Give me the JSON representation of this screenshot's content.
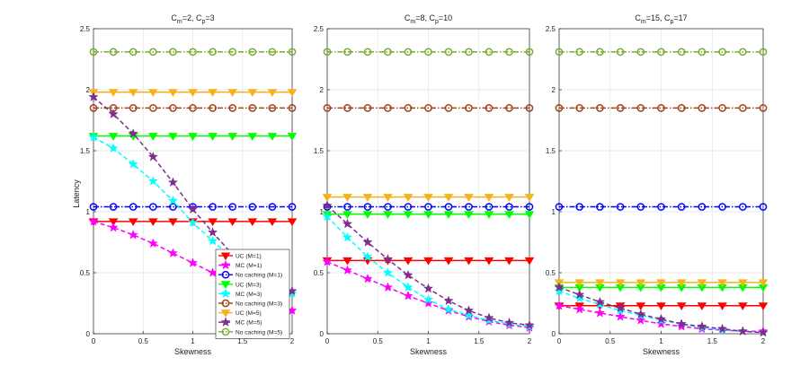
{
  "chart_data": {
    "type": "line",
    "ylabel": "Latency",
    "xlabel": "Skewness",
    "xlim": [
      0,
      2
    ],
    "ylim": [
      0,
      2.5
    ],
    "xticks": [
      "0",
      "0.5",
      "1",
      "1.5",
      "2"
    ],
    "yticks": [
      "0",
      "0.5",
      "1",
      "1.5",
      "2",
      "2.5"
    ],
    "grid": true,
    "x": [
      0,
      0.2,
      0.4,
      0.6,
      0.8,
      1.0,
      1.2,
      1.4,
      1.6,
      1.8,
      2.0
    ],
    "legend": {
      "placement": "bottom-right of first panel",
      "entries": [
        {
          "label": "UC (M=1)",
          "color": "#ff0000",
          "marker": "triangle-down",
          "style": "solid"
        },
        {
          "label": "MC (M=1)",
          "color": "#ff00ff",
          "marker": "star",
          "style": "dashed"
        },
        {
          "label": "No caching (M=1)",
          "color": "#0000ff",
          "marker": "circle",
          "style": "dashdot"
        },
        {
          "label": "UC (M=3)",
          "color": "#00ff00",
          "marker": "triangle-down",
          "style": "solid"
        },
        {
          "label": "MC (M=3)",
          "color": "#00ffff",
          "marker": "star",
          "style": "dashed"
        },
        {
          "label": "No caching (M=3)",
          "color": "#a0421a",
          "marker": "circle",
          "style": "dashdot"
        },
        {
          "label": "UC (M=5)",
          "color": "#f5b21b",
          "marker": "triangle-down",
          "style": "solid"
        },
        {
          "label": "MC (M=5)",
          "color": "#7e2f8e",
          "marker": "star",
          "style": "dashed"
        },
        {
          "label": "No caching (M=5)",
          "color": "#77ac30",
          "marker": "circle",
          "style": "dashdot"
        }
      ]
    },
    "panels": [
      {
        "title_main": "C",
        "title_sub1": "m",
        "title_mid": "=2, C",
        "title_sub2": "p",
        "title_end": "=3",
        "series": [
          {
            "name": "UC (M=1)",
            "values": [
              0.92,
              0.92,
              0.92,
              0.92,
              0.92,
              0.92,
              0.92,
              0.92,
              0.92,
              0.92,
              0.92
            ]
          },
          {
            "name": "MC (M=1)",
            "values": [
              0.92,
              0.87,
              0.81,
              0.74,
              0.66,
              0.58,
              0.5,
              0.42,
              0.34,
              0.26,
              0.19
            ]
          },
          {
            "name": "No caching (M=1)",
            "values": [
              1.04,
              1.04,
              1.04,
              1.04,
              1.04,
              1.04,
              1.04,
              1.04,
              1.04,
              1.04,
              1.04
            ]
          },
          {
            "name": "UC (M=3)",
            "values": [
              1.62,
              1.62,
              1.62,
              1.62,
              1.62,
              1.62,
              1.62,
              1.62,
              1.62,
              1.62,
              1.62
            ]
          },
          {
            "name": "MC (M=3)",
            "values": [
              1.61,
              1.52,
              1.39,
              1.25,
              1.09,
              0.91,
              0.76,
              0.62,
              0.51,
              0.42,
              0.33
            ]
          },
          {
            "name": "No caching (M=3)",
            "values": [
              1.85,
              1.85,
              1.85,
              1.85,
              1.85,
              1.85,
              1.85,
              1.85,
              1.85,
              1.85,
              1.85
            ]
          },
          {
            "name": "UC (M=5)",
            "values": [
              1.98,
              1.98,
              1.98,
              1.98,
              1.98,
              1.98,
              1.98,
              1.98,
              1.98,
              1.98,
              1.98
            ]
          },
          {
            "name": "MC (M=5)",
            "values": [
              1.94,
              1.8,
              1.64,
              1.45,
              1.24,
              1.02,
              0.83,
              0.65,
              0.51,
              0.41,
              0.35
            ]
          },
          {
            "name": "No caching (M=5)",
            "values": [
              2.31,
              2.31,
              2.31,
              2.31,
              2.31,
              2.31,
              2.31,
              2.31,
              2.31,
              2.31,
              2.31
            ]
          }
        ]
      },
      {
        "title_main": "C",
        "title_sub1": "m",
        "title_mid": "=8, C",
        "title_sub2": "p",
        "title_end": "=10",
        "series": [
          {
            "name": "UC (M=1)",
            "values": [
              0.6,
              0.6,
              0.6,
              0.6,
              0.6,
              0.6,
              0.6,
              0.6,
              0.6,
              0.6,
              0.6
            ]
          },
          {
            "name": "MC (M=1)",
            "values": [
              0.59,
              0.52,
              0.45,
              0.38,
              0.31,
              0.25,
              0.19,
              0.14,
              0.1,
              0.07,
              0.05
            ]
          },
          {
            "name": "No caching (M=1)",
            "values": [
              1.04,
              1.04,
              1.04,
              1.04,
              1.04,
              1.04,
              1.04,
              1.04,
              1.04,
              1.04,
              1.04
            ]
          },
          {
            "name": "UC (M=3)",
            "values": [
              0.98,
              0.98,
              0.98,
              0.98,
              0.98,
              0.98,
              0.98,
              0.98,
              0.98,
              0.98,
              0.98
            ]
          },
          {
            "name": "MC (M=3)",
            "values": [
              0.96,
              0.79,
              0.63,
              0.5,
              0.38,
              0.28,
              0.2,
              0.15,
              0.11,
              0.08,
              0.06
            ]
          },
          {
            "name": "No caching (M=3)",
            "values": [
              1.85,
              1.85,
              1.85,
              1.85,
              1.85,
              1.85,
              1.85,
              1.85,
              1.85,
              1.85,
              1.85
            ]
          },
          {
            "name": "UC (M=5)",
            "values": [
              1.12,
              1.12,
              1.12,
              1.12,
              1.12,
              1.12,
              1.12,
              1.12,
              1.12,
              1.12,
              1.12
            ]
          },
          {
            "name": "MC (M=5)",
            "values": [
              1.05,
              0.9,
              0.75,
              0.61,
              0.48,
              0.37,
              0.27,
              0.19,
              0.13,
              0.09,
              0.07
            ]
          },
          {
            "name": "No caching (M=5)",
            "values": [
              2.31,
              2.31,
              2.31,
              2.31,
              2.31,
              2.31,
              2.31,
              2.31,
              2.31,
              2.31,
              2.31
            ]
          }
        ]
      },
      {
        "title_main": "C",
        "title_sub1": "m",
        "title_mid": "=15, C",
        "title_sub2": "p",
        "title_end": "=17",
        "series": [
          {
            "name": "UC (M=1)",
            "values": [
              0.23,
              0.23,
              0.23,
              0.23,
              0.23,
              0.23,
              0.23,
              0.23,
              0.23,
              0.23,
              0.23
            ]
          },
          {
            "name": "MC (M=1)",
            "values": [
              0.23,
              0.2,
              0.17,
              0.14,
              0.11,
              0.08,
              0.06,
              0.04,
              0.03,
              0.02,
              0.02
            ]
          },
          {
            "name": "No caching (M=1)",
            "values": [
              1.04,
              1.04,
              1.04,
              1.04,
              1.04,
              1.04,
              1.04,
              1.04,
              1.04,
              1.04,
              1.04
            ]
          },
          {
            "name": "UC (M=3)",
            "values": [
              0.38,
              0.38,
              0.38,
              0.38,
              0.38,
              0.38,
              0.38,
              0.38,
              0.38,
              0.38,
              0.38
            ]
          },
          {
            "name": "MC (M=3)",
            "values": [
              0.35,
              0.29,
              0.24,
              0.19,
              0.15,
              0.11,
              0.08,
              0.05,
              0.03,
              0.02,
              0.01
            ]
          },
          {
            "name": "No caching (M=3)",
            "values": [
              1.85,
              1.85,
              1.85,
              1.85,
              1.85,
              1.85,
              1.85,
              1.85,
              1.85,
              1.85,
              1.85
            ]
          },
          {
            "name": "UC (M=5)",
            "values": [
              0.42,
              0.42,
              0.42,
              0.42,
              0.42,
              0.42,
              0.42,
              0.42,
              0.42,
              0.42,
              0.42
            ]
          },
          {
            "name": "MC (M=5)",
            "values": [
              0.38,
              0.32,
              0.26,
              0.21,
              0.16,
              0.12,
              0.08,
              0.06,
              0.04,
              0.02,
              0.01
            ]
          },
          {
            "name": "No caching (M=5)",
            "values": [
              2.31,
              2.31,
              2.31,
              2.31,
              2.31,
              2.31,
              2.31,
              2.31,
              2.31,
              2.31,
              2.31
            ]
          }
        ]
      }
    ]
  }
}
